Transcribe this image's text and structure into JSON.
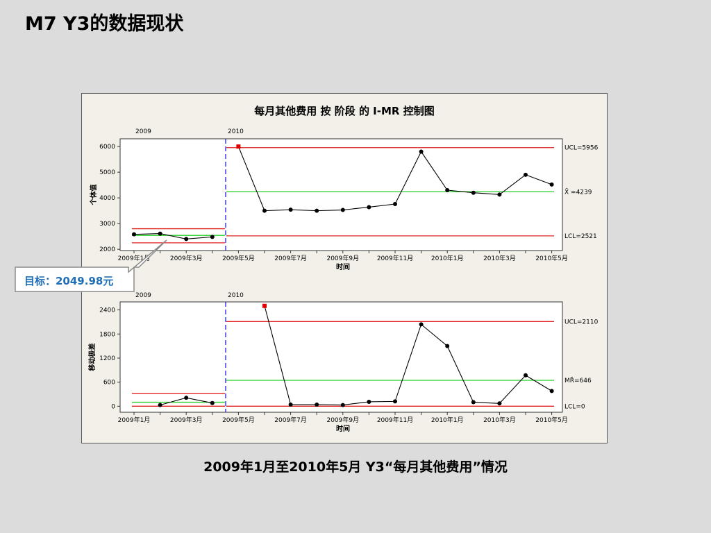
{
  "slide": {
    "title": "M7   Y3的数据现状",
    "caption": "2009年1月至2010年5月 Y3“每月其他费用”情况",
    "callout": "目标：2049.98元"
  },
  "chart_data": {
    "type": "line",
    "title": "每月其他费用 按 阶段 的 I-MR 控制图",
    "xlabel": "时间",
    "phases": [
      "2009",
      "2010"
    ],
    "x_tick_labels": [
      "2009年1月",
      "2009年3月",
      "2009年5月",
      "2009年7月",
      "2009年9月",
      "2009年11月",
      "2010年1月",
      "2010年3月",
      "2010年5月"
    ],
    "months": [
      "2009-01",
      "2009-02",
      "2009-03",
      "2009-04",
      "2009-05",
      "2009-06",
      "2009-07",
      "2009-08",
      "2009-09",
      "2009-10",
      "2009-11",
      "2009-12",
      "2010-01",
      "2010-02",
      "2010-03",
      "2010-04",
      "2010-05"
    ],
    "individual": {
      "ylabel": "个体值",
      "yticks": [
        "2000",
        "3000",
        "4000",
        "5000",
        "6000"
      ],
      "ylim": [
        1950,
        6300
      ],
      "values": [
        2580,
        2610,
        2400,
        2480,
        6000,
        3500,
        3540,
        3500,
        3530,
        3640,
        3760,
        5800,
        4300,
        4200,
        4130,
        4900,
        4520
      ],
      "out_of_control": [
        4
      ],
      "phase_2009": {
        "ucl": 2800,
        "center": 2540,
        "lcl": 2250
      },
      "phase_2010": {
        "ucl": 5956,
        "center": 4239,
        "lcl": 2521
      },
      "limit_labels": {
        "ucl": "UCL=5956",
        "center": "X̄ =4239",
        "lcl": "LCL=2521"
      }
    },
    "moving_range": {
      "ylabel": "移动极差",
      "yticks": [
        "0",
        "600",
        "1200",
        "1800",
        "2400"
      ],
      "ylim": [
        -150,
        2600
      ],
      "values": [
        null,
        30,
        210,
        80,
        null,
        2500,
        40,
        40,
        30,
        110,
        120,
        2040,
        1500,
        100,
        70,
        770,
        380
      ],
      "out_of_control": [
        5
      ],
      "phase_2009": {
        "ucl": 320,
        "center": 100,
        "lcl": 0
      },
      "phase_2010": {
        "ucl": 2110,
        "center": 646,
        "lcl": 0
      },
      "limit_labels": {
        "ucl": "UCL=2110",
        "center": "MR̄=646",
        "lcl": "LCL=0"
      }
    },
    "colors": {
      "limit": "#e02020",
      "center": "#20d020",
      "phase_divider": "#2020e0",
      "data": "#000000",
      "flag": "#e00000"
    }
  }
}
